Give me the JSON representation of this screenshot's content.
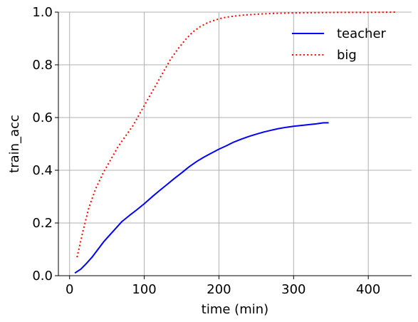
{
  "chart_data": {
    "type": "line",
    "xlabel": "time (min)",
    "ylabel": "train_acc",
    "xlim": [
      -15,
      458
    ],
    "ylim": [
      0.0,
      1.0
    ],
    "xticks": [
      0,
      100,
      200,
      300,
      400
    ],
    "yticks": [
      0.0,
      0.2,
      0.4,
      0.6,
      0.8,
      1.0
    ],
    "xtick_labels": [
      "0",
      "100",
      "200",
      "300",
      "400"
    ],
    "ytick_labels": [
      "0.0",
      "0.2",
      "0.4",
      "0.6",
      "0.8",
      "1.0"
    ],
    "grid": true,
    "legend_position": "top-right",
    "series": [
      {
        "name": "teacher",
        "color": "#0000ff",
        "style": "solid",
        "x": [
          7,
          15,
          22,
          30,
          38,
          46,
          54,
          62,
          70,
          80,
          90,
          100,
          110,
          120,
          130,
          140,
          150,
          160,
          170,
          180,
          190,
          200,
          210,
          220,
          230,
          240,
          250,
          260,
          270,
          280,
          290,
          300,
          310,
          320,
          330,
          340,
          347
        ],
        "y": [
          0.01,
          0.025,
          0.045,
          0.07,
          0.1,
          0.13,
          0.155,
          0.18,
          0.205,
          0.228,
          0.25,
          0.273,
          0.298,
          0.322,
          0.345,
          0.368,
          0.39,
          0.413,
          0.433,
          0.45,
          0.465,
          0.48,
          0.493,
          0.507,
          0.518,
          0.528,
          0.537,
          0.545,
          0.552,
          0.558,
          0.563,
          0.567,
          0.57,
          0.573,
          0.576,
          0.58,
          0.58
        ]
      },
      {
        "name": "big",
        "color": "#ff0000",
        "style": "dotted",
        "x": [
          10,
          18,
          26,
          35,
          45,
          55,
          65,
          75,
          85,
          95,
          105,
          115,
          125,
          135,
          145,
          155,
          165,
          175,
          185,
          195,
          205,
          215,
          230,
          250,
          270,
          300,
          330,
          360,
          400,
          437
        ],
        "y": [
          0.07,
          0.17,
          0.26,
          0.33,
          0.39,
          0.44,
          0.49,
          0.53,
          0.57,
          0.62,
          0.67,
          0.72,
          0.77,
          0.82,
          0.86,
          0.895,
          0.925,
          0.945,
          0.96,
          0.97,
          0.978,
          0.983,
          0.988,
          0.992,
          0.995,
          0.997,
          0.998,
          0.999,
          0.999,
          1.0
        ]
      }
    ]
  }
}
